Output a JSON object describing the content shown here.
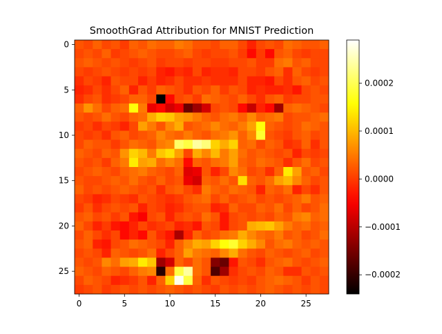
{
  "chart_data": {
    "type": "heatmap",
    "title": "SmoothGrad Attribution for MNIST Prediction",
    "xlabel": "",
    "ylabel": "",
    "rows": 28,
    "cols": 28,
    "x_ticks": [
      0,
      5,
      10,
      15,
      20,
      25
    ],
    "y_ticks": [
      0,
      5,
      10,
      15,
      20,
      25
    ],
    "colormap": "hot",
    "vmin": -0.00024,
    "vmax": 0.00029,
    "colorbar_ticks": [
      -0.0002,
      -0.0001,
      0.0,
      0.0001,
      0.0002
    ],
    "colorbar_labels": [
      "−0.0002",
      "−0.0001",
      "0.0000",
      "0.0001",
      "0.0002"
    ],
    "grid": false,
    "values": [
      [
        2e-05,
        1e-05,
        3e-05,
        1e-05,
        2e-05,
        0.0,
        3e-05,
        2e-05,
        4e-05,
        3e-05,
        3e-05,
        5e-05,
        4e-05,
        2e-05,
        2e-05,
        1e-05,
        3e-05,
        3e-05,
        1e-05,
        -2e-05,
        1e-05,
        2e-05,
        1e-05,
        4e-05,
        3e-05,
        2e-05,
        2e-05,
        3e-05
      ],
      [
        1e-05,
        2e-05,
        1e-05,
        3e-05,
        0.0,
        1e-05,
        2e-05,
        3e-05,
        2e-05,
        1e-05,
        1e-05,
        2e-05,
        3e-05,
        1e-05,
        0.0,
        1e-05,
        1e-05,
        2e-05,
        0.0,
        -4e-05,
        0.0,
        -4e-05,
        2e-05,
        3e-05,
        1e-05,
        0.0,
        1e-05,
        1e-05
      ],
      [
        2e-05,
        3e-05,
        2e-05,
        1e-05,
        2e-05,
        1e-05,
        0.0,
        1e-05,
        2e-05,
        0.0,
        1e-05,
        1e-05,
        0.0,
        1e-05,
        1e-05,
        0.0,
        0.0,
        1e-05,
        1e-05,
        2e-05,
        0.0,
        0.0,
        4e-05,
        5e-05,
        2e-05,
        3e-05,
        1e-05,
        1e-05
      ],
      [
        1e-05,
        0.0,
        1e-05,
        2e-05,
        1e-05,
        0.0,
        1e-05,
        0.0,
        1e-05,
        -2e-05,
        -3e-05,
        -1e-05,
        -2e-05,
        1e-05,
        -2e-05,
        -1e-05,
        -1e-05,
        -2e-05,
        1e-05,
        1e-05,
        0.0,
        2e-05,
        3e-05,
        -1e-05,
        3e-05,
        1e-05,
        0.0,
        1e-05
      ],
      [
        -1e-05,
        1e-05,
        0.0,
        -2e-05,
        2e-05,
        1e-05,
        1e-05,
        -2e-05,
        0.0,
        -2e-05,
        -1e-05,
        1e-05,
        -1e-05,
        -1e-05,
        0.0,
        -1e-05,
        -1e-05,
        -1e-05,
        1e-05,
        -2e-05,
        -2e-05,
        -3e-05,
        1e-05,
        -1e-05,
        2e-05,
        3e-05,
        1e-05,
        2e-05
      ],
      [
        -2e-05,
        -1e-05,
        1e-05,
        -1e-05,
        1e-05,
        3e-05,
        -2e-05,
        2e-05,
        0.0,
        3e-05,
        2e-05,
        1e-05,
        -1e-05,
        2e-05,
        1e-05,
        3e-05,
        0.0,
        2e-05,
        1e-05,
        -2e-05,
        -1e-05,
        -2e-05,
        -2e-05,
        -1e-05,
        -3e-05,
        1e-05,
        2e-05,
        1e-05
      ],
      [
        -1e-05,
        1e-05,
        2e-05,
        -1e-05,
        0.0,
        1e-05,
        3e-05,
        3e-05,
        1e-05,
        -0.00024,
        -4e-05,
        1e-05,
        2e-05,
        0.0,
        4e-05,
        3e-05,
        2e-05,
        1e-05,
        3e-05,
        1e-05,
        -1e-05,
        2e-05,
        3e-05,
        0.0,
        1e-05,
        1e-05,
        2e-05,
        2e-05
      ],
      [
        3e-05,
        7e-05,
        4e-05,
        1e-05,
        3e-05,
        4e-05,
        0.00016,
        5e-05,
        -6e-05,
        -4e-05,
        -8e-05,
        -6e-05,
        -0.00016,
        -0.00012,
        -8e-05,
        1e-05,
        2e-05,
        1e-05,
        -4e-05,
        -9e-05,
        -2e-05,
        -4e-05,
        -0.00012,
        3e-05,
        4e-05,
        3e-05,
        2e-05,
        1e-05
      ],
      [
        2e-05,
        1e-05,
        2e-05,
        4e-05,
        2e-05,
        1e-05,
        3e-05,
        4e-05,
        9e-05,
        0.00012,
        0.00011,
        8e-05,
        7e-05,
        5e-05,
        3e-05,
        2e-05,
        4e-05,
        5e-05,
        3e-05,
        6e-05,
        3e-05,
        4e-05,
        5e-05,
        1e-05,
        2e-05,
        2e-05,
        3e-05,
        4e-05
      ],
      [
        0.0,
        1e-05,
        -1e-05,
        1e-05,
        0.0,
        -2e-05,
        1e-05,
        8e-05,
        5e-05,
        2e-05,
        6e-05,
        9e-05,
        2e-05,
        3e-05,
        4e-05,
        6e-05,
        4e-05,
        3e-05,
        5e-05,
        8e-05,
        0.00016,
        3e-05,
        2e-05,
        1e-05,
        2e-05,
        4e-05,
        3e-05,
        2e-05
      ],
      [
        1e-05,
        0.0,
        1e-05,
        -1e-05,
        2e-05,
        3e-05,
        1e-05,
        2e-05,
        3e-05,
        6e-05,
        4e-05,
        3e-05,
        5e-05,
        3e-05,
        2e-05,
        4e-05,
        5e-05,
        7e-05,
        3e-05,
        6e-05,
        0.00018,
        2e-05,
        1e-05,
        0.0,
        2e-05,
        3e-05,
        1e-05,
        2e-05
      ],
      [
        1e-05,
        3e-05,
        2e-05,
        2e-05,
        0.0,
        2e-05,
        4e-05,
        3e-05,
        2e-05,
        5e-05,
        6e-05,
        0.00021,
        0.00019,
        0.00024,
        0.00022,
        0.00012,
        9e-05,
        0.00012,
        3e-05,
        4e-05,
        1e-05,
        3e-05,
        2e-05,
        -1e-05,
        0.0,
        3e-05,
        -1e-05,
        2e-05
      ],
      [
        3e-05,
        2e-05,
        1e-05,
        3e-05,
        2e-05,
        7e-05,
        0.00012,
        0.0001,
        5e-05,
        0.00011,
        0.00013,
        8e-05,
        1e-05,
        9e-05,
        6e-05,
        0.0001,
        5e-05,
        8e-05,
        4e-05,
        2e-05,
        3e-05,
        2e-05,
        1e-05,
        2e-05,
        -2e-05,
        1e-05,
        0.0,
        1e-05
      ],
      [
        2e-05,
        1e-05,
        2e-05,
        0.0,
        3e-05,
        5e-05,
        0.00014,
        8e-05,
        9e-05,
        4e-05,
        6e-05,
        4e-05,
        -4e-05,
        3e-05,
        2e-05,
        4e-05,
        5e-05,
        8e-05,
        3e-05,
        2e-05,
        4e-05,
        3e-05,
        2e-05,
        -1e-05,
        2e-05,
        4e-05,
        1e-05,
        2e-05
      ],
      [
        1e-05,
        2e-05,
        3e-05,
        2e-05,
        1e-05,
        3e-05,
        4e-05,
        5e-05,
        3e-05,
        2e-05,
        1e-05,
        3e-05,
        -7e-05,
        -6e-05,
        2e-05,
        -2e-05,
        1e-05,
        6e-05,
        4e-05,
        1e-05,
        2e-05,
        -1e-05,
        3e-05,
        0.00014,
        8e-05,
        2e-05,
        3e-05,
        1e-05
      ],
      [
        2e-05,
        1e-05,
        1e-05,
        2e-05,
        3e-05,
        2e-05,
        4e-05,
        2e-05,
        1e-05,
        3e-05,
        1e-05,
        2e-05,
        -6e-05,
        -8e-05,
        3e-05,
        2e-05,
        4e-05,
        2e-05,
        0.00013,
        3e-05,
        2e-05,
        4e-05,
        8e-05,
        0.0001,
        6e-05,
        3e-05,
        1e-05,
        2e-05
      ],
      [
        3e-05,
        1e-05,
        2e-05,
        1e-05,
        2e-05,
        3e-05,
        2e-05,
        1e-05,
        2e-05,
        -1e-05,
        2e-05,
        3e-05,
        1e-05,
        -1e-05,
        5e-05,
        3e-05,
        2e-05,
        4e-05,
        3e-05,
        2e-05,
        -2e-05,
        3e-05,
        2e-05,
        4e-05,
        -2e-05,
        1e-05,
        -1e-05,
        2e-05
      ],
      [
        1e-05,
        0.0,
        -2e-05,
        -1e-05,
        1e-05,
        0.0,
        -1e-05,
        2e-05,
        1e-05,
        0.0,
        -1e-05,
        0.0,
        2e-05,
        3e-05,
        4e-05,
        1e-05,
        3e-05,
        1e-05,
        2e-05,
        3e-05,
        1e-05,
        2e-05,
        1e-05,
        2e-05,
        3e-05,
        5e-05,
        2e-05,
        3e-05
      ],
      [
        0.0,
        2e-05,
        -1e-05,
        1e-05,
        2e-05,
        1e-05,
        2e-05,
        -2e-05,
        1e-05,
        0.0,
        -2e-05,
        -1e-05,
        1e-05,
        2e-05,
        2e-05,
        -2e-05,
        -1e-05,
        3e-05,
        1e-05,
        1e-05,
        3e-05,
        2e-05,
        4e-05,
        1e-05,
        3e-05,
        1e-05,
        2e-05,
        4e-05
      ],
      [
        2e-05,
        3e-05,
        1e-05,
        2e-05,
        0.0,
        2e-05,
        -3e-05,
        -5e-05,
        1e-05,
        2e-05,
        -2e-05,
        1e-05,
        2e-05,
        1e-05,
        4e-05,
        2e-05,
        -3e-05,
        1e-05,
        2e-05,
        1e-05,
        2e-05,
        1e-05,
        3e-05,
        2e-05,
        5e-05,
        6e-05,
        3e-05,
        4e-05
      ],
      [
        3e-05,
        1e-05,
        -2e-05,
        0.0,
        -3e-05,
        -4e-05,
        -2e-05,
        1e-05,
        -1e-05,
        0.0,
        1e-05,
        -2e-05,
        -1e-05,
        -3e-05,
        2e-05,
        1e-05,
        -3e-05,
        1e-05,
        2e-05,
        9e-05,
        0.0001,
        0.00011,
        8e-05,
        5e-05,
        3e-05,
        4e-05,
        2e-05,
        3e-05
      ],
      [
        1e-05,
        3e-05,
        1e-05,
        -1e-05,
        1e-05,
        -4e-05,
        -2e-05,
        -4e-05,
        2e-05,
        -1e-05,
        -3e-05,
        -0.00011,
        -2e-05,
        3e-05,
        1e-05,
        2e-05,
        4e-05,
        5e-05,
        9e-05,
        6e-05,
        4e-05,
        3e-05,
        5e-05,
        2e-05,
        3e-05,
        1e-05,
        2e-05,
        4e-05
      ],
      [
        2e-05,
        3e-05,
        -2e-05,
        -3e-05,
        1e-05,
        2e-05,
        4e-05,
        3e-05,
        2e-05,
        1e-05,
        -2e-05,
        3e-05,
        6e-05,
        9e-05,
        8e-05,
        0.00012,
        0.00016,
        0.00018,
        0.00012,
        9e-05,
        6e-05,
        2e-05,
        4e-05,
        5e-05,
        3e-05,
        2e-05,
        3e-05,
        2e-05
      ],
      [
        1e-05,
        2e-05,
        1e-05,
        -2e-05,
        3e-05,
        2e-05,
        1e-05,
        2e-05,
        4e-05,
        -2e-05,
        1e-05,
        3e-05,
        8e-05,
        5e-05,
        4e-05,
        3e-05,
        6e-05,
        9e-05,
        4e-05,
        2e-05,
        1e-05,
        3e-05,
        2e-05,
        1e-05,
        2e-05,
        3e-05,
        1e-05,
        2e-05
      ],
      [
        2e-05,
        1e-05,
        2e-05,
        6e-05,
        4e-05,
        8e-05,
        9e-05,
        0.00014,
        0.00011,
        -0.00012,
        -8e-05,
        3e-05,
        1e-05,
        4e-05,
        2e-05,
        -0.00014,
        -0.00016,
        -3e-05,
        2e-05,
        1e-05,
        -1e-05,
        2e-05,
        3e-05,
        4e-05,
        2e-05,
        1e-05,
        2e-05,
        3e-05
      ],
      [
        3e-05,
        2e-05,
        1e-05,
        3e-05,
        2e-05,
        1e-05,
        3e-05,
        5e-05,
        6e-05,
        -0.00021,
        4e-05,
        0.00019,
        0.00024,
        4e-05,
        2e-05,
        -0.00018,
        -0.00012,
        -1e-05,
        1e-05,
        2e-05,
        1e-05,
        3e-05,
        2e-05,
        -1e-05,
        -1e-05,
        2e-05,
        1e-05,
        2e-05
      ],
      [
        1e-05,
        3e-05,
        2e-05,
        1e-05,
        -2e-05,
        -1e-05,
        0.0,
        2e-05,
        -2e-05,
        3e-05,
        0.00012,
        0.00028,
        0.00019,
        3e-05,
        -1e-05,
        2e-05,
        1e-05,
        0.0,
        1e-05,
        0.0,
        2e-05,
        3e-05,
        4e-05,
        3e-05,
        2e-05,
        0.0,
        2e-05,
        1e-05
      ],
      [
        0.0,
        1e-05,
        2e-05,
        0.0,
        1e-05,
        2e-05,
        1e-05,
        2e-05,
        1e-05,
        2e-05,
        3e-05,
        2e-05,
        1e-05,
        2e-05,
        1e-05,
        0.0,
        2e-05,
        1e-05,
        2e-05,
        1e-05,
        2e-05,
        3e-05,
        2e-05,
        1e-05,
        2e-05,
        1e-05,
        2e-05,
        1e-05
      ]
    ]
  }
}
